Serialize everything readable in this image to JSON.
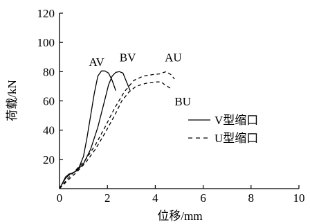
{
  "chart_data": {
    "type": "line",
    "title": "",
    "xlabel": "位移/mm",
    "ylabel": "荷载/kN",
    "xlim": [
      0,
      10
    ],
    "ylim": [
      0,
      120
    ],
    "xticks": [
      "0",
      "2",
      "4",
      "6",
      "8",
      "10"
    ],
    "yticks": [
      "20",
      "40",
      "60",
      "80",
      "100",
      "120"
    ],
    "grid": false,
    "legend_position": "right-middle",
    "legend": [
      {
        "label": "V型缩口",
        "style": "solid"
      },
      {
        "label": "U型缩口",
        "style": "dashed"
      }
    ],
    "series": [
      {
        "name": "AV",
        "group": "V型缩口",
        "style": "solid",
        "points": [
          [
            0,
            0
          ],
          [
            0.1,
            3
          ],
          [
            0.25,
            8
          ],
          [
            0.4,
            10
          ],
          [
            0.6,
            11
          ],
          [
            0.8,
            14
          ],
          [
            1.0,
            22
          ],
          [
            1.15,
            35
          ],
          [
            1.3,
            50
          ],
          [
            1.45,
            65
          ],
          [
            1.6,
            77
          ],
          [
            1.75,
            80.5
          ],
          [
            1.9,
            80.5
          ],
          [
            2.05,
            79
          ],
          [
            2.2,
            74
          ],
          [
            2.35,
            67
          ]
        ]
      },
      {
        "name": "BV",
        "group": "V型缩口",
        "style": "solid",
        "points": [
          [
            0,
            0
          ],
          [
            0.1,
            3
          ],
          [
            0.25,
            7
          ],
          [
            0.45,
            10
          ],
          [
            0.7,
            12
          ],
          [
            1.0,
            17
          ],
          [
            1.3,
            27
          ],
          [
            1.6,
            42
          ],
          [
            1.85,
            58
          ],
          [
            2.05,
            71
          ],
          [
            2.2,
            77
          ],
          [
            2.35,
            79.5
          ],
          [
            2.5,
            80
          ],
          [
            2.65,
            79
          ],
          [
            2.8,
            73
          ],
          [
            2.95,
            67
          ]
        ]
      },
      {
        "name": "AU",
        "group": "U型缩口",
        "style": "dashed",
        "points": [
          [
            0,
            0
          ],
          [
            0.3,
            6
          ],
          [
            0.7,
            13
          ],
          [
            1.1,
            20
          ],
          [
            1.5,
            30
          ],
          [
            1.9,
            42
          ],
          [
            2.3,
            55
          ],
          [
            2.7,
            66
          ],
          [
            3.1,
            74
          ],
          [
            3.5,
            77
          ],
          [
            3.9,
            78
          ],
          [
            4.2,
            78.5
          ],
          [
            4.45,
            80
          ],
          [
            4.65,
            78
          ],
          [
            4.8,
            75
          ]
        ]
      },
      {
        "name": "BU",
        "group": "U型缩口",
        "style": "dashed",
        "points": [
          [
            0,
            0
          ],
          [
            0.3,
            5
          ],
          [
            0.7,
            11
          ],
          [
            1.1,
            18
          ],
          [
            1.5,
            27
          ],
          [
            1.9,
            38
          ],
          [
            2.3,
            50
          ],
          [
            2.6,
            60
          ],
          [
            2.9,
            66
          ],
          [
            3.2,
            70
          ],
          [
            3.6,
            72
          ],
          [
            4.0,
            73
          ],
          [
            4.25,
            73
          ],
          [
            4.4,
            71
          ],
          [
            4.7,
            68
          ]
        ]
      }
    ],
    "annotations": [
      {
        "text": "AV",
        "x": 1.55,
        "y": 84
      },
      {
        "text": "BV",
        "x": 2.85,
        "y": 87
      },
      {
        "text": "AU",
        "x": 4.75,
        "y": 87
      },
      {
        "text": "BU",
        "x": 5.15,
        "y": 57
      }
    ]
  }
}
